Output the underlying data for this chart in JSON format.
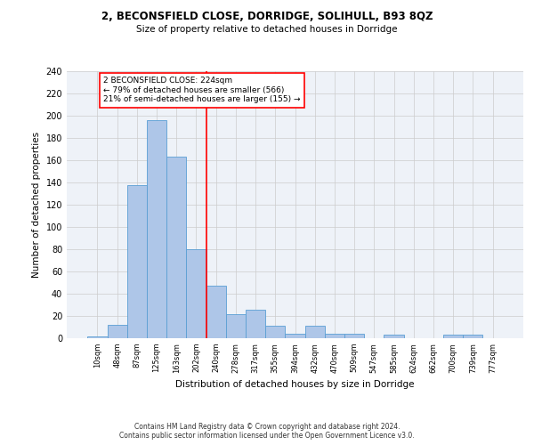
{
  "title_line1": "2, BECONSFIELD CLOSE, DORRIDGE, SOLIHULL, B93 8QZ",
  "title_line2": "Size of property relative to detached houses in Dorridge",
  "xlabel": "Distribution of detached houses by size in Dorridge",
  "ylabel": "Number of detached properties",
  "bar_labels": [
    "10sqm",
    "48sqm",
    "87sqm",
    "125sqm",
    "163sqm",
    "202sqm",
    "240sqm",
    "278sqm",
    "317sqm",
    "355sqm",
    "394sqm",
    "432sqm",
    "470sqm",
    "509sqm",
    "547sqm",
    "585sqm",
    "624sqm",
    "662sqm",
    "700sqm",
    "739sqm",
    "777sqm"
  ],
  "bar_values": [
    2,
    12,
    138,
    196,
    163,
    80,
    47,
    22,
    26,
    11,
    4,
    11,
    4,
    4,
    0,
    3,
    0,
    0,
    3,
    3,
    0
  ],
  "bar_color": "#aec6e8",
  "bar_edge_color": "#5a9fd4",
  "annotation_line1": "2 BECONSFIELD CLOSE: 224sqm",
  "annotation_line2": "← 79% of detached houses are smaller (566)",
  "annotation_line3": "21% of semi-detached houses are larger (155) →",
  "vline_x": 5.5,
  "vline_color": "red",
  "annotation_box_color": "white",
  "annotation_box_edge": "red",
  "ylim": [
    0,
    240
  ],
  "yticks": [
    0,
    20,
    40,
    60,
    80,
    100,
    120,
    140,
    160,
    180,
    200,
    220,
    240
  ],
  "grid_color": "#cccccc",
  "bg_color": "#eef2f8",
  "footer_line1": "Contains HM Land Registry data © Crown copyright and database right 2024.",
  "footer_line2": "Contains public sector information licensed under the Open Government Licence v3.0."
}
